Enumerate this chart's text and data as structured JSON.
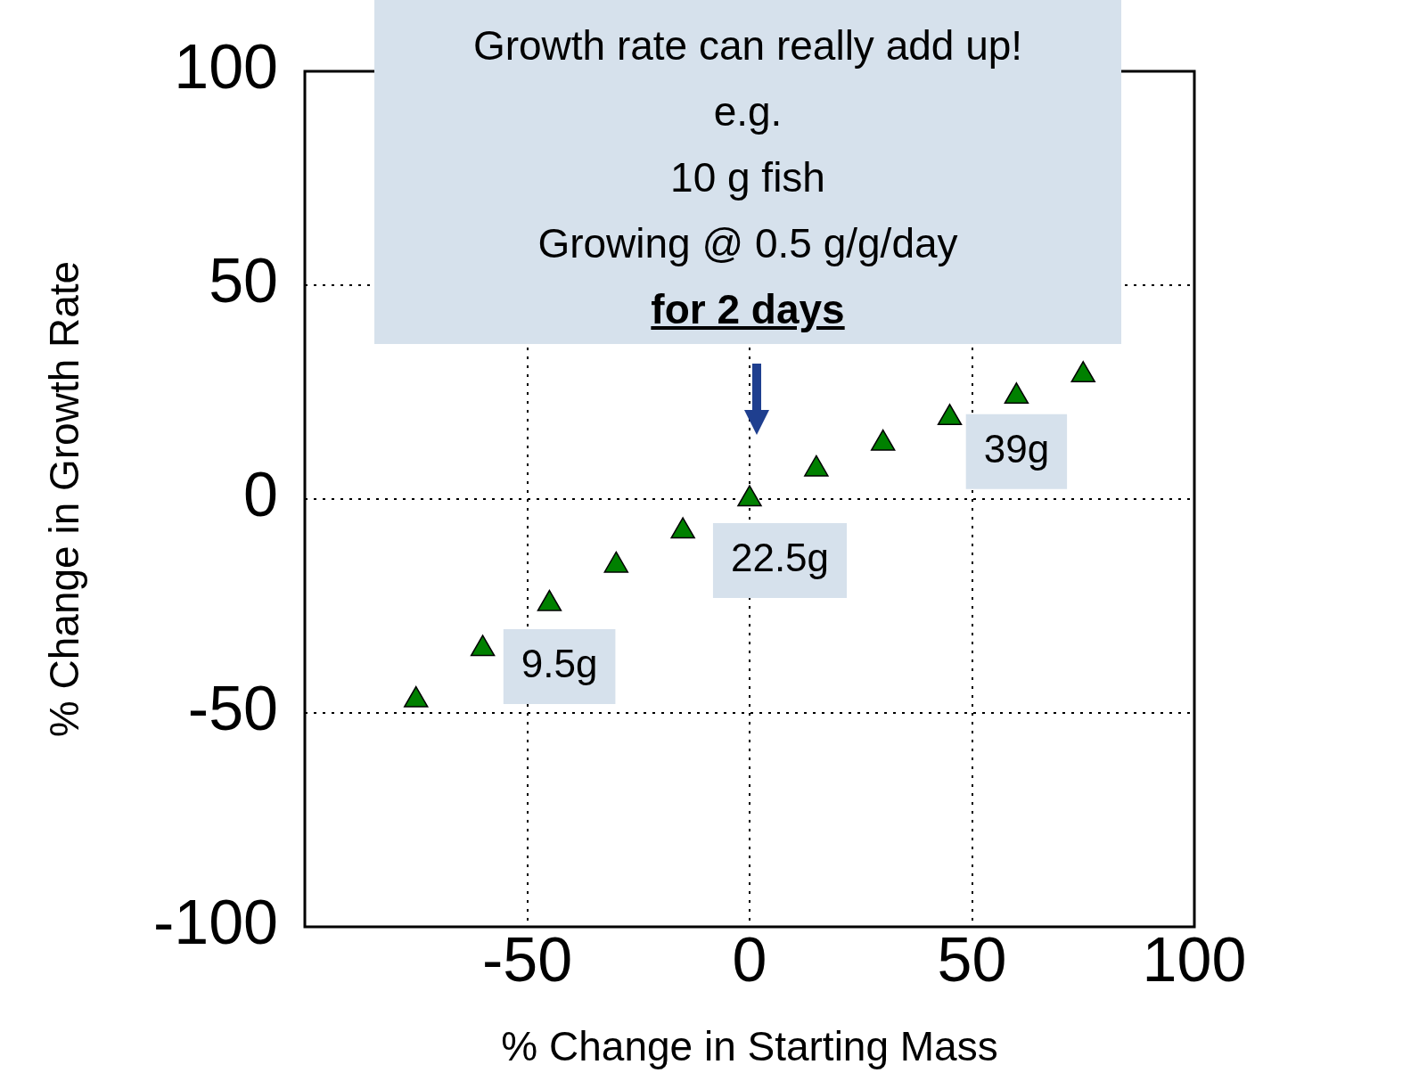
{
  "chart_data": {
    "type": "scatter",
    "xlabel": "% Change in Starting Mass",
    "ylabel": "% Change in Growth Rate",
    "x": [
      -75,
      -60,
      -45,
      -30,
      -15,
      0,
      15,
      30,
      45,
      60,
      75
    ],
    "series": [
      {
        "color": "#008000",
        "values": [
          -47,
          -35,
          -24.5,
          -15.5,
          -7.5,
          0,
          7,
          13,
          19,
          24,
          29
        ]
      }
    ],
    "marker": "triangle",
    "xlim": [
      -100,
      100
    ],
    "xticks": [
      -50,
      0,
      50,
      100
    ],
    "ylim": [
      -100,
      100
    ],
    "yticks": [
      -100,
      -50,
      0,
      50,
      100
    ],
    "grid": true,
    "legend": false,
    "annotations": [
      "Growth rate can really add up!",
      "e.g.",
      "10 g fish",
      "Growing @ 0.5 g/g/day",
      "for 2 days",
      {
        "text": "9.5g",
        "x": -60,
        "y": -35
      },
      {
        "text": "22.5g",
        "x": 0,
        "y": 0
      },
      {
        "text": "39g",
        "x": 60,
        "y": 24
      }
    ]
  }
}
